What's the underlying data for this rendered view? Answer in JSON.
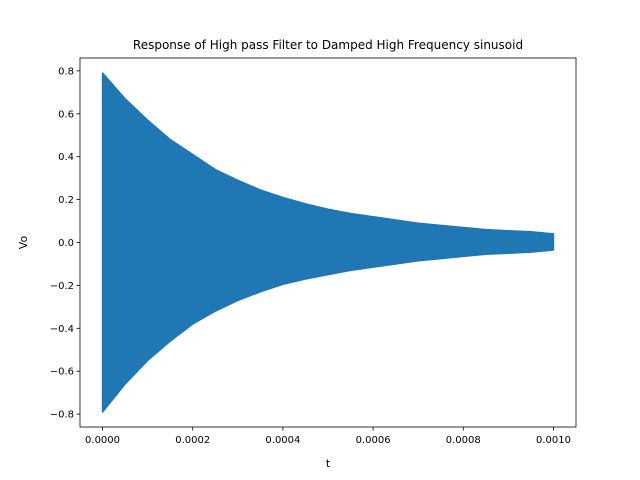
{
  "chart_data": {
    "type": "area",
    "title": "Response of High pass Filter to Damped High Frequency sinusoid",
    "xlabel": "t",
    "ylabel": "Vo",
    "xlim": [
      -5e-05,
      0.00105
    ],
    "ylim": [
      -0.86,
      0.86
    ],
    "xticks": [
      0,
      0.0002,
      0.0004,
      0.0006,
      0.0008,
      0.001
    ],
    "xtick_labels": [
      "0.0000",
      "0.0002",
      "0.0004",
      "0.0006",
      "0.0008",
      "0.0010"
    ],
    "yticks": [
      -0.8,
      -0.6,
      -0.4,
      -0.2,
      0.0,
      0.2,
      0.4,
      0.6,
      0.8
    ],
    "ytick_labels": [
      "−0.8",
      "−0.6",
      "−0.4",
      "−0.2",
      "0.0",
      "0.2",
      "0.4",
      "0.6",
      "0.8"
    ],
    "grid": false,
    "series": [
      {
        "color": "#1f77b4",
        "x": [
          0,
          5e-05,
          0.0001,
          0.00015,
          0.0002,
          0.00025,
          0.0003,
          0.00035,
          0.0004,
          0.00045,
          0.0005,
          0.00055,
          0.0006,
          0.00065,
          0.0007,
          0.00075,
          0.0008,
          0.00085,
          0.0009,
          0.00095,
          0.001
        ],
        "upper": [
          0.79,
          0.67,
          0.57,
          0.48,
          0.41,
          0.34,
          0.29,
          0.245,
          0.21,
          0.18,
          0.155,
          0.135,
          0.12,
          0.105,
          0.09,
          0.08,
          0.07,
          0.06,
          0.055,
          0.05,
          0.04
        ],
        "lower": [
          -0.79,
          -0.66,
          -0.55,
          -0.46,
          -0.38,
          -0.32,
          -0.27,
          -0.23,
          -0.195,
          -0.17,
          -0.15,
          -0.13,
          -0.115,
          -0.1,
          -0.085,
          -0.075,
          -0.065,
          -0.055,
          -0.05,
          -0.045,
          -0.035
        ]
      }
    ]
  }
}
